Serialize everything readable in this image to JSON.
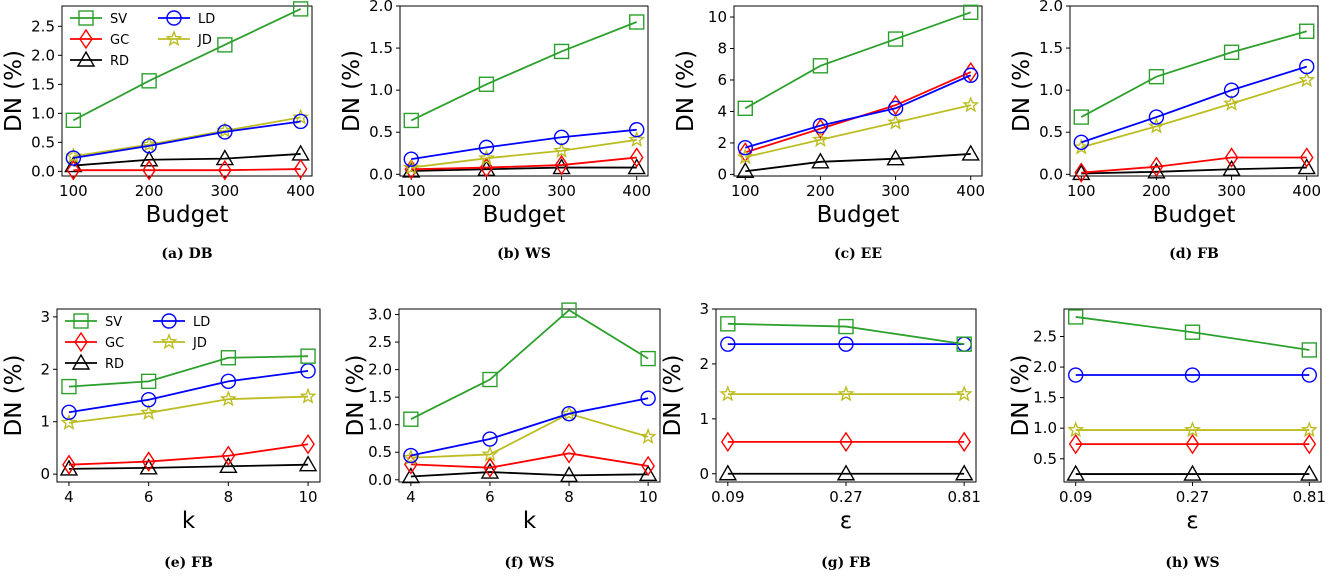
{
  "colors": {
    "SV": "#2ca02c",
    "GC": "#ff0000",
    "RD": "#000000",
    "LD": "#0000ff",
    "JD": "#bcbd22"
  },
  "markers": {
    "SV": "square",
    "GC": "diamond",
    "RD": "triangle",
    "LD": "circle",
    "JD": "star"
  },
  "chart_data": [
    {
      "type": "line",
      "caption": "(a) DB",
      "xlabel": "Budget",
      "ylabel": "DN (%)",
      "x": [
        100,
        200,
        300,
        400
      ],
      "xticks": [
        "100",
        "200",
        "300",
        "400"
      ],
      "ylim": [
        -0.08,
        2.85
      ],
      "yticks": [
        "0.0",
        "0.5",
        "1.0",
        "1.5",
        "2.0",
        "2.5"
      ],
      "legend": true,
      "series": [
        {
          "name": "SV",
          "values": [
            0.88,
            1.56,
            2.18,
            2.8
          ]
        },
        {
          "name": "GC",
          "values": [
            0.02,
            0.02,
            0.02,
            0.04
          ]
        },
        {
          "name": "RD",
          "values": [
            0.1,
            0.2,
            0.22,
            0.3
          ]
        },
        {
          "name": "LD",
          "values": [
            0.23,
            0.44,
            0.68,
            0.86
          ]
        },
        {
          "name": "JD",
          "values": [
            0.26,
            0.46,
            0.7,
            0.93
          ]
        }
      ]
    },
    {
      "type": "line",
      "caption": "(b) WS",
      "xlabel": "Budget",
      "ylabel": "DN (%)",
      "x": [
        100,
        200,
        300,
        400
      ],
      "xticks": [
        "100",
        "200",
        "300",
        "400"
      ],
      "ylim": [
        -0.02,
        2.0
      ],
      "yticks": [
        "0.0",
        "0.5",
        "1.0",
        "1.5",
        "2.0"
      ],
      "legend": false,
      "series": [
        {
          "name": "SV",
          "values": [
            0.64,
            1.07,
            1.46,
            1.81
          ]
        },
        {
          "name": "GC",
          "values": [
            0.06,
            0.08,
            0.11,
            0.2
          ]
        },
        {
          "name": "RD",
          "values": [
            0.04,
            0.06,
            0.08,
            0.08
          ]
        },
        {
          "name": "LD",
          "values": [
            0.18,
            0.32,
            0.44,
            0.53
          ]
        },
        {
          "name": "JD",
          "values": [
            0.08,
            0.19,
            0.28,
            0.41
          ]
        }
      ]
    },
    {
      "type": "line",
      "caption": "(c) EE",
      "xlabel": "Budget",
      "ylabel": "DN (%)",
      "x": [
        100,
        200,
        300,
        400
      ],
      "xticks": [
        "100",
        "200",
        "300",
        "400"
      ],
      "ylim": [
        -0.1,
        10.7
      ],
      "yticks": [
        "0",
        "2",
        "4",
        "6",
        "8",
        "10"
      ],
      "legend": false,
      "series": [
        {
          "name": "SV",
          "values": [
            4.2,
            6.9,
            8.6,
            10.3
          ]
        },
        {
          "name": "GC",
          "values": [
            1.4,
            2.9,
            4.4,
            6.5
          ]
        },
        {
          "name": "RD",
          "values": [
            0.2,
            0.8,
            1.0,
            1.3
          ]
        },
        {
          "name": "LD",
          "values": [
            1.7,
            3.1,
            4.2,
            6.3
          ]
        },
        {
          "name": "JD",
          "values": [
            1.1,
            2.2,
            3.3,
            4.4
          ]
        }
      ]
    },
    {
      "type": "line",
      "caption": "(d) FB",
      "xlabel": "Budget",
      "ylabel": "DN (%)",
      "x": [
        100,
        200,
        300,
        400
      ],
      "xticks": [
        "100",
        "200",
        "300",
        "400"
      ],
      "ylim": [
        -0.02,
        2.0
      ],
      "yticks": [
        "0.0",
        "0.5",
        "1.0",
        "1.5",
        "2.0"
      ],
      "legend": false,
      "series": [
        {
          "name": "SV",
          "values": [
            0.68,
            1.16,
            1.45,
            1.7
          ]
        },
        {
          "name": "GC",
          "values": [
            0.02,
            0.09,
            0.2,
            0.2
          ]
        },
        {
          "name": "RD",
          "values": [
            0.01,
            0.03,
            0.06,
            0.08
          ]
        },
        {
          "name": "LD",
          "values": [
            0.38,
            0.68,
            1.0,
            1.28
          ]
        },
        {
          "name": "JD",
          "values": [
            0.32,
            0.57,
            0.84,
            1.12
          ]
        }
      ]
    },
    {
      "type": "line",
      "caption": "(e) FB",
      "xlabel": "k",
      "ylabel": "DN (%)",
      "x": [
        4,
        6,
        8,
        10
      ],
      "xticks": [
        "4",
        "6",
        "8",
        "10"
      ],
      "ylim": [
        -0.15,
        3.15
      ],
      "yticks": [
        "0",
        "1",
        "2",
        "3"
      ],
      "legend": true,
      "series": [
        {
          "name": "SV",
          "values": [
            1.67,
            1.77,
            2.22,
            2.25
          ]
        },
        {
          "name": "GC",
          "values": [
            0.18,
            0.24,
            0.35,
            0.57
          ]
        },
        {
          "name": "RD",
          "values": [
            0.1,
            0.12,
            0.15,
            0.18
          ]
        },
        {
          "name": "LD",
          "values": [
            1.18,
            1.42,
            1.77,
            1.97
          ]
        },
        {
          "name": "JD",
          "values": [
            0.98,
            1.17,
            1.43,
            1.48
          ]
        }
      ]
    },
    {
      "type": "line",
      "caption": "(f) WS",
      "xlabel": "k",
      "ylabel": "DN (%)",
      "x": [
        4,
        6,
        8,
        10
      ],
      "xticks": [
        "4",
        "6",
        "8",
        "10"
      ],
      "ylim": [
        -0.04,
        3.1
      ],
      "yticks": [
        "0.0",
        "0.5",
        "1.0",
        "1.5",
        "2.0",
        "2.5",
        "3.0"
      ],
      "legend": false,
      "series": [
        {
          "name": "SV",
          "values": [
            1.1,
            1.82,
            3.08,
            2.2
          ]
        },
        {
          "name": "GC",
          "values": [
            0.28,
            0.22,
            0.48,
            0.25
          ]
        },
        {
          "name": "RD",
          "values": [
            0.06,
            0.14,
            0.08,
            0.1
          ]
        },
        {
          "name": "LD",
          "values": [
            0.44,
            0.74,
            1.2,
            1.48
          ]
        },
        {
          "name": "JD",
          "values": [
            0.4,
            0.46,
            1.2,
            0.78
          ]
        }
      ]
    },
    {
      "type": "line",
      "caption": "(g) FB",
      "xlabel": "ε",
      "ylabel": "DN (%)",
      "x": [
        0.09,
        0.27,
        0.81
      ],
      "xticks": [
        "0.09",
        "0.27",
        "0.81"
      ],
      "xscale": "log",
      "ylim": [
        -0.15,
        3.0
      ],
      "yticks": [
        "0",
        "1",
        "2",
        "3"
      ],
      "legend": false,
      "series": [
        {
          "name": "SV",
          "values": [
            2.73,
            2.68,
            2.36
          ]
        },
        {
          "name": "GC",
          "values": [
            0.58,
            0.58,
            0.58
          ]
        },
        {
          "name": "RD",
          "values": [
            0.0,
            0.0,
            0.0
          ]
        },
        {
          "name": "LD",
          "values": [
            2.36,
            2.36,
            2.36
          ]
        },
        {
          "name": "JD",
          "values": [
            1.45,
            1.45,
            1.45
          ]
        }
      ]
    },
    {
      "type": "line",
      "caption": "(h) WS",
      "xlabel": "ε",
      "ylabel": "DN (%)",
      "x": [
        0.09,
        0.27,
        0.81
      ],
      "xticks": [
        "0.09",
        "0.27",
        "0.81"
      ],
      "xscale": "log",
      "ylim": [
        0.12,
        2.95
      ],
      "yticks": [
        "0.5",
        "1.0",
        "1.5",
        "2.0",
        "2.5"
      ],
      "legend": false,
      "series": [
        {
          "name": "SV",
          "values": [
            2.82,
            2.57,
            2.28
          ]
        },
        {
          "name": "GC",
          "values": [
            0.74,
            0.74,
            0.74
          ]
        },
        {
          "name": "RD",
          "values": [
            0.25,
            0.25,
            0.25
          ]
        },
        {
          "name": "LD",
          "values": [
            1.87,
            1.87,
            1.87
          ]
        },
        {
          "name": "JD",
          "values": [
            0.97,
            0.97,
            0.97
          ]
        }
      ]
    }
  ]
}
